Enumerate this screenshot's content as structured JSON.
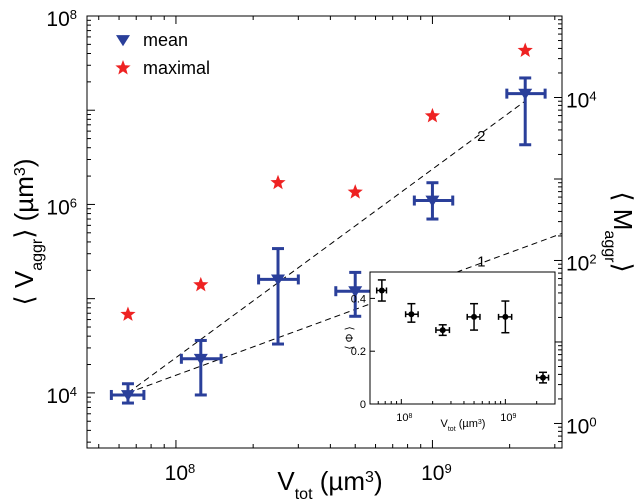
{
  "colors": {
    "mean": "#2a3f9a",
    "maximal": "#ee2222",
    "inset": "#000000"
  },
  "chart_data": [
    {
      "type": "scatter",
      "xscale": "log",
      "yscale": "log",
      "xlim": [
        45000000.0,
        3200000000.0
      ],
      "ylim": [
        2600.0,
        100000000.0
      ],
      "y2lim": [
        0.5,
        100000.0
      ],
      "xlabel": {
        "main": "V",
        "sub": "tot",
        "rest": " (µm",
        "sup": "3",
        "close": ")"
      },
      "ylabel": {
        "main": "⟨ V",
        "sub": "aggr",
        "rest": "⟩ (µm",
        "sup": "3",
        "close": ")"
      },
      "y2label": {
        "main": "⟨ M",
        "sub": "aggr",
        "close": "⟩"
      },
      "xticks": [
        {
          "value": 100000000.0,
          "base": "10",
          "exp": "8"
        },
        {
          "value": 1000000000.0,
          "base": "10",
          "exp": "9"
        }
      ],
      "yticks": [
        {
          "value": 10000.0,
          "base": "10",
          "exp": "4"
        },
        {
          "value": 1000000.0,
          "base": "10",
          "exp": "6"
        },
        {
          "value": 100000000.0,
          "base": "10",
          "exp": "8"
        }
      ],
      "y2ticks": [
        {
          "value": 1,
          "base": "10",
          "exp": "0"
        },
        {
          "value": 100,
          "base": "10",
          "exp": "2"
        },
        {
          "value": 10000,
          "base": "10",
          "exp": "4"
        }
      ],
      "legend": {
        "position": "top-left",
        "entries": [
          {
            "label": "mean",
            "marker": "triangle-down",
            "series": 0
          },
          {
            "label": "maximal",
            "marker": "star",
            "series": 1
          }
        ]
      },
      "series": [
        {
          "name": "mean",
          "marker": "triangle-down",
          "points": [
            {
              "x": 65000000.0,
              "y": 9500.0,
              "xerr": [
                56000000.0,
                75000000.0
              ],
              "yerr": [
                7800.0,
                12500.0
              ]
            },
            {
              "x": 125000000.0,
              "y": 23000.0,
              "xerr": [
                105000000.0,
                150000000.0
              ],
              "yerr": [
                9500.0,
                36000.0
              ]
            },
            {
              "x": 250000000.0,
              "y": 160000.0,
              "xerr": [
                210000000.0,
                300000000.0
              ],
              "yerr": [
                33000.0,
                340000.0
              ]
            },
            {
              "x": 500000000.0,
              "y": 120000.0,
              "xerr": [
                420000000.0,
                580000000.0
              ],
              "yerr": [
                65000.0,
                190000.0
              ]
            },
            {
              "x": 1000000000.0,
              "y": 1100000.0,
              "xerr": [
                850000000.0,
                1200000000.0
              ],
              "yerr": [
                700000.0,
                1700000.0
              ]
            },
            {
              "x": 2300000000.0,
              "y": 15000000.0,
              "xerr": [
                1950000000.0,
                2750000000.0
              ],
              "yerr": [
                4300000.0,
                22000000.0
              ]
            }
          ]
        },
        {
          "name": "maximal",
          "marker": "star",
          "points": [
            {
              "x": 65000000.0,
              "y": 68000.0
            },
            {
              "x": 125000000.0,
              "y": 140000.0
            },
            {
              "x": 250000000.0,
              "y": 1700000.0
            },
            {
              "x": 500000000.0,
              "y": 1350000.0
            },
            {
              "x": 1000000000.0,
              "y": 8700000.0
            },
            {
              "x": 2300000000.0,
              "y": 43000000.0
            }
          ]
        }
      ],
      "fit_lines": [
        {
          "label": "2",
          "slope": 2,
          "from": {
            "x": 65000000.0,
            "y": 10000.0
          },
          "x_end": 2300000000.0,
          "label_at": {
            "x": 1550000000.0,
            "y": 4700000.0
          }
        },
        {
          "label": "1",
          "slope": 1,
          "from": {
            "x": 65000000.0,
            "y": 10000.0
          },
          "x_end": 3200000000.0,
          "label_at": {
            "x": 1550000000.0,
            "y": 220000.0
          }
        }
      ]
    },
    {
      "type": "scatter",
      "xscale": "log",
      "yscale": "linear",
      "xlim": [
        50000000.0,
        3000000000.0
      ],
      "ylim": [
        0,
        0.5
      ],
      "xlabel": {
        "main": "V",
        "sub": "tot",
        "rest": " (µm",
        "sup": "3",
        "close": ")"
      },
      "ylabel": "⟨ Φ ⟩",
      "xticks": [
        {
          "value": 100000000.0,
          "base": "10",
          "exp": "8"
        },
        {
          "value": 1000000000.0,
          "base": "10",
          "exp": "9"
        }
      ],
      "yticks": [
        {
          "value": 0,
          "label": "0"
        },
        {
          "value": 0.2,
          "label": "0.2"
        },
        {
          "value": 0.4,
          "label": "0.4"
        }
      ],
      "series": [
        {
          "marker": "dot",
          "points": [
            {
              "x": 65000000.0,
              "y": 0.43,
              "xerr": [
                58000000.0,
                72000000.0
              ],
              "yerr": [
                0.39,
                0.47
              ]
            },
            {
              "x": 125000000.0,
              "y": 0.34,
              "xerr": [
                110000000.0,
                145000000.0
              ],
              "yerr": [
                0.31,
                0.38
              ]
            },
            {
              "x": 250000000.0,
              "y": 0.28,
              "xerr": [
                215000000.0,
                290000000.0
              ],
              "yerr": [
                0.26,
                0.3
              ]
            },
            {
              "x": 500000000.0,
              "y": 0.33,
              "xerr": [
                430000000.0,
                570000000.0
              ],
              "yerr": [
                0.28,
                0.38
              ]
            },
            {
              "x": 1000000000.0,
              "y": 0.33,
              "xerr": [
                860000000.0,
                1150000000.0
              ],
              "yerr": [
                0.27,
                0.39
              ]
            },
            {
              "x": 2300000000.0,
              "y": 0.1,
              "xerr": [
                2000000000.0,
                2600000000.0
              ],
              "yerr": [
                0.08,
                0.12
              ]
            }
          ]
        }
      ]
    }
  ]
}
